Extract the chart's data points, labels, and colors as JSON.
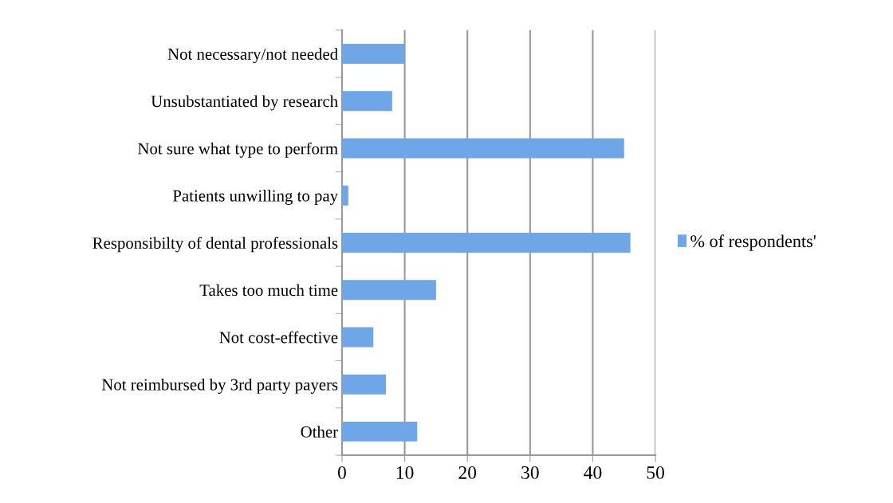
{
  "chart_data": {
    "type": "bar",
    "orientation": "horizontal",
    "categories": [
      "Not necessary/not needed",
      "Unsubstantiated by research",
      "Not sure what type to perform",
      "Patients unwilling to pay",
      "Responsibilty of dental professionals",
      "Takes too much time",
      "Not cost-effective",
      "Not reimbursed by 3rd party payers",
      "Other"
    ],
    "series": [
      {
        "name": "% of respondents'",
        "color": "#6ea6e8",
        "values": [
          10,
          8,
          45,
          1,
          46,
          15,
          5,
          7,
          12
        ]
      }
    ],
    "xlim": [
      0,
      50
    ],
    "xticks": [
      0,
      10,
      20,
      30,
      40,
      50
    ],
    "grid": "x",
    "legend": "right"
  }
}
